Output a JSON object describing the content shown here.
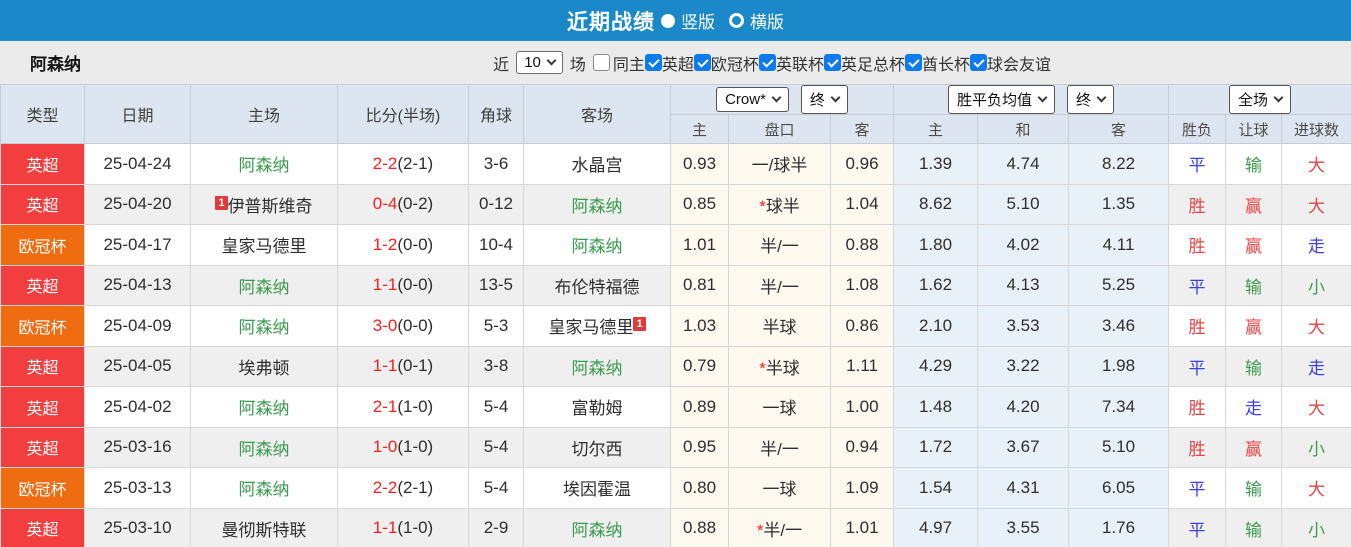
{
  "topbar": {
    "title": "近期战绩",
    "options": [
      {
        "label": "竖版",
        "selected": true
      },
      {
        "label": "横版",
        "selected": false
      }
    ]
  },
  "filter": {
    "team": "阿森纳",
    "recent_label": "近",
    "recent_value": "10",
    "recent_suffix": "场",
    "same_venue": {
      "label": "同主",
      "checked": false
    },
    "competitions": [
      {
        "label": "英超",
        "checked": true
      },
      {
        "label": "欧冠杯",
        "checked": true
      },
      {
        "label": "英联杯",
        "checked": true
      },
      {
        "label": "英足总杯",
        "checked": true
      },
      {
        "label": "酋长杯",
        "checked": true
      },
      {
        "label": "球会友谊",
        "checked": true
      }
    ]
  },
  "table": {
    "headers": {
      "type": "类型",
      "date": "日期",
      "home": "主场",
      "score": "比分(半场)",
      "corners": "角球",
      "away": "客场"
    },
    "selects": {
      "odds_company": "Crow*",
      "odds_time": "终",
      "mean_label": "胜平负均值",
      "mean_time": "终",
      "scope": "全场"
    },
    "sub_headers": [
      "主",
      "盘口",
      "客",
      "主",
      "和",
      "客",
      "胜负",
      "让球",
      "进球数"
    ],
    "rows": [
      {
        "type": "英超",
        "type_role": "epl",
        "date": "25-04-24",
        "home": "阿森纳",
        "home_focus": true,
        "home_mark": null,
        "score": "2-2",
        "half": "(2-1)",
        "corners": "3-6",
        "away": "水晶宫",
        "away_focus": false,
        "away_mark": null,
        "odds_home": "0.93",
        "handicap": "一/球半",
        "odds_away": "0.96",
        "mean_home": "1.39",
        "mean_draw": "4.74",
        "mean_away": "8.22",
        "outcome": "平",
        "outcome_role": "draw",
        "asian": "输",
        "asian_role": "lose",
        "goals": "大",
        "goals_role": "win"
      },
      {
        "type": "英超",
        "type_role": "epl",
        "date": "25-04-20",
        "home": "伊普斯维奇",
        "home_focus": false,
        "home_mark": {
          "text": "1",
          "pos": "before"
        },
        "score": "0-4",
        "half": "(0-2)",
        "corners": "0-12",
        "away": "阿森纳",
        "away_focus": true,
        "away_mark": null,
        "odds_home": "0.85",
        "handicap": "*球半",
        "odds_away": "1.04",
        "mean_home": "8.62",
        "mean_draw": "5.10",
        "mean_away": "1.35",
        "outcome": "胜",
        "outcome_role": "win",
        "asian": "赢",
        "asian_role": "win",
        "goals": "大",
        "goals_role": "win"
      },
      {
        "type": "欧冠杯",
        "type_role": "ucl",
        "date": "25-04-17",
        "home": "皇家马德里",
        "home_focus": false,
        "home_mark": null,
        "score": "1-2",
        "half": "(0-0)",
        "corners": "10-4",
        "away": "阿森纳",
        "away_focus": true,
        "away_mark": null,
        "odds_home": "1.01",
        "handicap": "半/一",
        "odds_away": "0.88",
        "mean_home": "1.80",
        "mean_draw": "4.02",
        "mean_away": "4.11",
        "outcome": "胜",
        "outcome_role": "win",
        "asian": "赢",
        "asian_role": "win",
        "goals": "走",
        "goals_role": "push"
      },
      {
        "type": "英超",
        "type_role": "epl",
        "date": "25-04-13",
        "home": "阿森纳",
        "home_focus": true,
        "home_mark": null,
        "score": "1-1",
        "half": "(0-0)",
        "corners": "13-5",
        "away": "布伦特福德",
        "away_focus": false,
        "away_mark": null,
        "odds_home": "0.81",
        "handicap": "半/一",
        "odds_away": "1.08",
        "mean_home": "1.62",
        "mean_draw": "4.13",
        "mean_away": "5.25",
        "outcome": "平",
        "outcome_role": "draw",
        "asian": "输",
        "asian_role": "lose",
        "goals": "小",
        "goals_role": "lose"
      },
      {
        "type": "欧冠杯",
        "type_role": "ucl",
        "date": "25-04-09",
        "home": "阿森纳",
        "home_focus": true,
        "home_mark": null,
        "score": "3-0",
        "half": "(0-0)",
        "corners": "5-3",
        "away": "皇家马德里",
        "away_focus": false,
        "away_mark": {
          "text": "1",
          "pos": "after"
        },
        "odds_home": "1.03",
        "handicap": "半球",
        "odds_away": "0.86",
        "mean_home": "2.10",
        "mean_draw": "3.53",
        "mean_away": "3.46",
        "outcome": "胜",
        "outcome_role": "win",
        "asian": "赢",
        "asian_role": "win",
        "goals": "大",
        "goals_role": "win"
      },
      {
        "type": "英超",
        "type_role": "epl",
        "date": "25-04-05",
        "home": "埃弗顿",
        "home_focus": false,
        "home_mark": null,
        "score": "1-1",
        "half": "(0-1)",
        "corners": "3-8",
        "away": "阿森纳",
        "away_focus": true,
        "away_mark": null,
        "odds_home": "0.79",
        "handicap": "*半球",
        "odds_away": "1.11",
        "mean_home": "4.29",
        "mean_draw": "3.22",
        "mean_away": "1.98",
        "outcome": "平",
        "outcome_role": "draw",
        "asian": "输",
        "asian_role": "lose",
        "goals": "走",
        "goals_role": "push"
      },
      {
        "type": "英超",
        "type_role": "epl",
        "date": "25-04-02",
        "home": "阿森纳",
        "home_focus": true,
        "home_mark": null,
        "score": "2-1",
        "half": "(1-0)",
        "corners": "5-4",
        "away": "富勒姆",
        "away_focus": false,
        "away_mark": null,
        "odds_home": "0.89",
        "handicap": "一球",
        "odds_away": "1.00",
        "mean_home": "1.48",
        "mean_draw": "4.20",
        "mean_away": "7.34",
        "outcome": "胜",
        "outcome_role": "win",
        "asian": "走",
        "asian_role": "push",
        "goals": "大",
        "goals_role": "win"
      },
      {
        "type": "英超",
        "type_role": "epl",
        "date": "25-03-16",
        "home": "阿森纳",
        "home_focus": true,
        "home_mark": null,
        "score": "1-0",
        "half": "(1-0)",
        "corners": "5-4",
        "away": "切尔西",
        "away_focus": false,
        "away_mark": null,
        "odds_home": "0.95",
        "handicap": "半/一",
        "odds_away": "0.94",
        "mean_home": "1.72",
        "mean_draw": "3.67",
        "mean_away": "5.10",
        "outcome": "胜",
        "outcome_role": "win",
        "asian": "赢",
        "asian_role": "win",
        "goals": "小",
        "goals_role": "lose"
      },
      {
        "type": "欧冠杯",
        "type_role": "ucl",
        "date": "25-03-13",
        "home": "阿森纳",
        "home_focus": true,
        "home_mark": null,
        "score": "2-2",
        "half": "(2-1)",
        "corners": "5-4",
        "away": "埃因霍温",
        "away_focus": false,
        "away_mark": null,
        "odds_home": "0.80",
        "handicap": "一球",
        "odds_away": "1.09",
        "mean_home": "1.54",
        "mean_draw": "4.31",
        "mean_away": "6.05",
        "outcome": "平",
        "outcome_role": "draw",
        "asian": "输",
        "asian_role": "lose",
        "goals": "大",
        "goals_role": "win"
      },
      {
        "type": "英超",
        "type_role": "epl",
        "date": "25-03-10",
        "home": "曼彻斯特联",
        "home_focus": false,
        "home_mark": null,
        "score": "1-1",
        "half": "(1-0)",
        "corners": "2-9",
        "away": "阿森纳",
        "away_focus": true,
        "away_mark": null,
        "odds_home": "0.88",
        "handicap": "*半/一",
        "odds_away": "1.01",
        "mean_home": "4.97",
        "mean_draw": "3.55",
        "mean_away": "1.76",
        "outcome": "平",
        "outcome_role": "draw",
        "asian": "输",
        "asian_role": "lose",
        "goals": "小",
        "goals_role": "lose"
      }
    ]
  },
  "colors": {
    "topbar_bg": "#1a88c9",
    "header_bg": "#dde6f0",
    "row_stripe": "#efefef",
    "cream_bg": "#fdf9ee",
    "mean_bg": "#e9f1f8",
    "checkbox_accent": "#0c7cec",
    "epl": "#f23e3e",
    "ucl": "#f06c11",
    "focus_team": "#3a9b4e",
    "score": "#ff1e1e",
    "win": "#e64545",
    "draw": "#3c3cf0",
    "lose": "#3f9b4f",
    "push": "#3c3cf0",
    "marker": "#e03a3a",
    "star": "#ff1e1e"
  }
}
